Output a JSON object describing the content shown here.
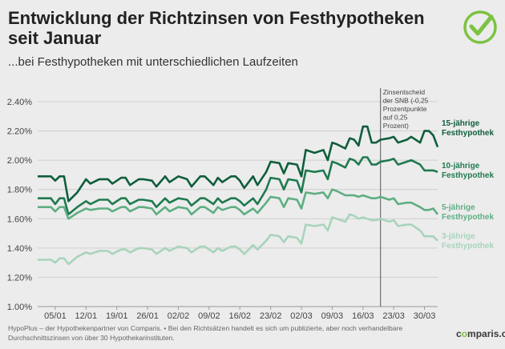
{
  "header": {
    "title": "Entwicklung der Richtzinsen von Festhypotheken seit Januar",
    "subtitle": "...bei Festhypotheken mit unterschiedlichen Laufzeiten"
  },
  "footer": {
    "text": "HypoPlus – der Hypothekenpartner von Comparis. • Bei den Richtsätzen handelt es sich um publizierte, aber noch verhandelbare Durchschnittszinsen von über 30 Hypothekarinstituten.",
    "brand_pre": "c",
    "brand_dot": "o",
    "brand_post": "mparis.ch"
  },
  "colors": {
    "y15": "#0f5e3b",
    "y10": "#1f7a4f",
    "y5": "#5fae83",
    "y3": "#a8d4bb",
    "logo": "#7cc242"
  },
  "chart_data": {
    "type": "line",
    "title": "Entwicklung der Richtzinsen von Festhypotheken seit Januar",
    "xlabel": "",
    "ylabel": "",
    "ylim": [
      1.0,
      2.4
    ],
    "yticks": [
      "2.40%",
      "2.20%",
      "2.00%",
      "1.80%",
      "1.60%",
      "1.40%",
      "1.20%",
      "1.00%"
    ],
    "x_range": [
      1,
      92
    ],
    "xticks": [
      {
        "label": "05/01",
        "x": 5
      },
      {
        "label": "12/01",
        "x": 12
      },
      {
        "label": "19/01",
        "x": 19
      },
      {
        "label": "26/01",
        "x": 26
      },
      {
        "label": "02/02",
        "x": 33
      },
      {
        "label": "09/02",
        "x": 40
      },
      {
        "label": "16/02",
        "x": 47
      },
      {
        "label": "23/02",
        "x": 54
      },
      {
        "label": "02/03",
        "x": 61
      },
      {
        "label": "09/03",
        "x": 68
      },
      {
        "label": "16/03",
        "x": 75
      },
      {
        "label": "23/03",
        "x": 82
      },
      {
        "label": "30/03",
        "x": 89
      }
    ],
    "annotation": {
      "x": 79,
      "lines": [
        "Zinsentscheid",
        "der SNB (-0,25",
        "Prozentpunkte",
        "auf 0,25",
        "Prozent)"
      ]
    },
    "series": [
      {
        "name": "15-jährige Festhypothek",
        "label_lines": [
          "15-jährige",
          "Festhypothek"
        ],
        "x": [
          1,
          4,
          5,
          6,
          7,
          8,
          10,
          12,
          13,
          15,
          17,
          18,
          20,
          21,
          22,
          24,
          25,
          27,
          28,
          30,
          31,
          33,
          35,
          36,
          38,
          39,
          40,
          41,
          42,
          43,
          45,
          46,
          47,
          48,
          50,
          51,
          53,
          54,
          56,
          57,
          58,
          60,
          61,
          62,
          64,
          66,
          67,
          68,
          69,
          71,
          72,
          73,
          74,
          75,
          76,
          77,
          78,
          79,
          81,
          82,
          83,
          85,
          86,
          88,
          89,
          90,
          91,
          92
        ],
        "y": [
          1.89,
          1.89,
          1.86,
          1.89,
          1.89,
          1.72,
          1.78,
          1.87,
          1.84,
          1.87,
          1.87,
          1.84,
          1.88,
          1.88,
          1.83,
          1.87,
          1.87,
          1.86,
          1.82,
          1.89,
          1.85,
          1.89,
          1.87,
          1.82,
          1.89,
          1.89,
          1.86,
          1.83,
          1.88,
          1.85,
          1.89,
          1.89,
          1.86,
          1.81,
          1.89,
          1.83,
          1.92,
          1.99,
          1.98,
          1.91,
          1.98,
          1.97,
          1.89,
          2.07,
          2.05,
          2.07,
          2.0,
          2.12,
          2.11,
          2.08,
          2.15,
          2.14,
          2.1,
          2.23,
          2.23,
          2.12,
          2.12,
          2.14,
          2.15,
          2.16,
          2.12,
          2.14,
          2.16,
          2.12,
          2.2,
          2.2,
          2.17,
          2.09
        ]
      },
      {
        "name": "10-jährige Festhypothek",
        "label_lines": [
          "10-jährige",
          "Festhypothek"
        ],
        "x": [
          1,
          4,
          5,
          6,
          7,
          8,
          10,
          12,
          13,
          15,
          17,
          18,
          20,
          21,
          22,
          24,
          25,
          27,
          28,
          30,
          31,
          33,
          35,
          36,
          38,
          39,
          40,
          41,
          42,
          43,
          45,
          46,
          47,
          48,
          50,
          51,
          53,
          54,
          56,
          57,
          58,
          60,
          61,
          62,
          64,
          66,
          67,
          68,
          69,
          71,
          72,
          73,
          74,
          75,
          76,
          77,
          78,
          79,
          81,
          82,
          83,
          85,
          86,
          88,
          89,
          90,
          91,
          92
        ],
        "y": [
          1.74,
          1.74,
          1.7,
          1.74,
          1.74,
          1.63,
          1.68,
          1.72,
          1.7,
          1.73,
          1.73,
          1.7,
          1.74,
          1.74,
          1.7,
          1.73,
          1.73,
          1.72,
          1.68,
          1.74,
          1.71,
          1.74,
          1.73,
          1.69,
          1.74,
          1.74,
          1.72,
          1.7,
          1.74,
          1.71,
          1.74,
          1.74,
          1.72,
          1.69,
          1.74,
          1.7,
          1.8,
          1.88,
          1.87,
          1.8,
          1.87,
          1.86,
          1.78,
          1.93,
          1.92,
          1.93,
          1.87,
          1.99,
          1.98,
          1.95,
          2.01,
          2.0,
          1.97,
          2.02,
          2.02,
          1.97,
          1.97,
          1.99,
          2.0,
          2.01,
          1.97,
          1.99,
          2.0,
          1.97,
          1.93,
          1.93,
          1.93,
          1.92
        ]
      },
      {
        "name": "5-jährige Festhypothek",
        "label_lines": [
          "5-jährige",
          "Festhypothek"
        ],
        "x": [
          1,
          4,
          5,
          6,
          7,
          8,
          10,
          12,
          13,
          15,
          17,
          18,
          20,
          21,
          22,
          24,
          25,
          27,
          28,
          30,
          31,
          33,
          35,
          36,
          38,
          39,
          40,
          41,
          42,
          43,
          45,
          46,
          47,
          48,
          50,
          51,
          53,
          54,
          56,
          57,
          58,
          60,
          61,
          62,
          64,
          66,
          67,
          68,
          69,
          71,
          72,
          73,
          74,
          75,
          76,
          77,
          78,
          79,
          81,
          82,
          83,
          85,
          86,
          88,
          89,
          90,
          91,
          92
        ],
        "y": [
          1.68,
          1.68,
          1.65,
          1.68,
          1.68,
          1.6,
          1.64,
          1.67,
          1.66,
          1.67,
          1.67,
          1.65,
          1.68,
          1.68,
          1.65,
          1.68,
          1.68,
          1.67,
          1.63,
          1.68,
          1.65,
          1.68,
          1.67,
          1.63,
          1.68,
          1.68,
          1.66,
          1.64,
          1.68,
          1.66,
          1.68,
          1.68,
          1.66,
          1.63,
          1.67,
          1.64,
          1.71,
          1.75,
          1.74,
          1.68,
          1.74,
          1.73,
          1.67,
          1.78,
          1.77,
          1.78,
          1.74,
          1.8,
          1.79,
          1.76,
          1.76,
          1.76,
          1.75,
          1.76,
          1.75,
          1.74,
          1.74,
          1.75,
          1.73,
          1.74,
          1.7,
          1.71,
          1.71,
          1.68,
          1.66,
          1.66,
          1.67,
          1.63
        ]
      },
      {
        "name": "3-jährige Festhypothek",
        "label_lines": [
          "3-jährige",
          "Festhypothek"
        ],
        "x": [
          1,
          4,
          5,
          6,
          7,
          8,
          10,
          12,
          13,
          15,
          17,
          18,
          20,
          21,
          22,
          24,
          25,
          27,
          28,
          30,
          31,
          33,
          35,
          36,
          38,
          39,
          40,
          41,
          42,
          43,
          45,
          46,
          47,
          48,
          50,
          51,
          53,
          54,
          56,
          57,
          58,
          60,
          61,
          62,
          64,
          66,
          67,
          68,
          69,
          71,
          72,
          73,
          74,
          75,
          76,
          77,
          78,
          79,
          81,
          82,
          83,
          85,
          86,
          88,
          89,
          90,
          91,
          92
        ],
        "y": [
          1.32,
          1.32,
          1.3,
          1.33,
          1.33,
          1.29,
          1.34,
          1.37,
          1.36,
          1.38,
          1.38,
          1.36,
          1.39,
          1.39,
          1.37,
          1.4,
          1.4,
          1.39,
          1.36,
          1.4,
          1.38,
          1.41,
          1.4,
          1.37,
          1.41,
          1.41,
          1.39,
          1.37,
          1.4,
          1.38,
          1.41,
          1.41,
          1.39,
          1.36,
          1.42,
          1.39,
          1.45,
          1.49,
          1.48,
          1.44,
          1.48,
          1.47,
          1.43,
          1.56,
          1.55,
          1.56,
          1.52,
          1.61,
          1.6,
          1.58,
          1.63,
          1.62,
          1.6,
          1.61,
          1.6,
          1.59,
          1.59,
          1.6,
          1.58,
          1.59,
          1.55,
          1.56,
          1.56,
          1.52,
          1.48,
          1.48,
          1.48,
          1.45
        ]
      }
    ]
  }
}
